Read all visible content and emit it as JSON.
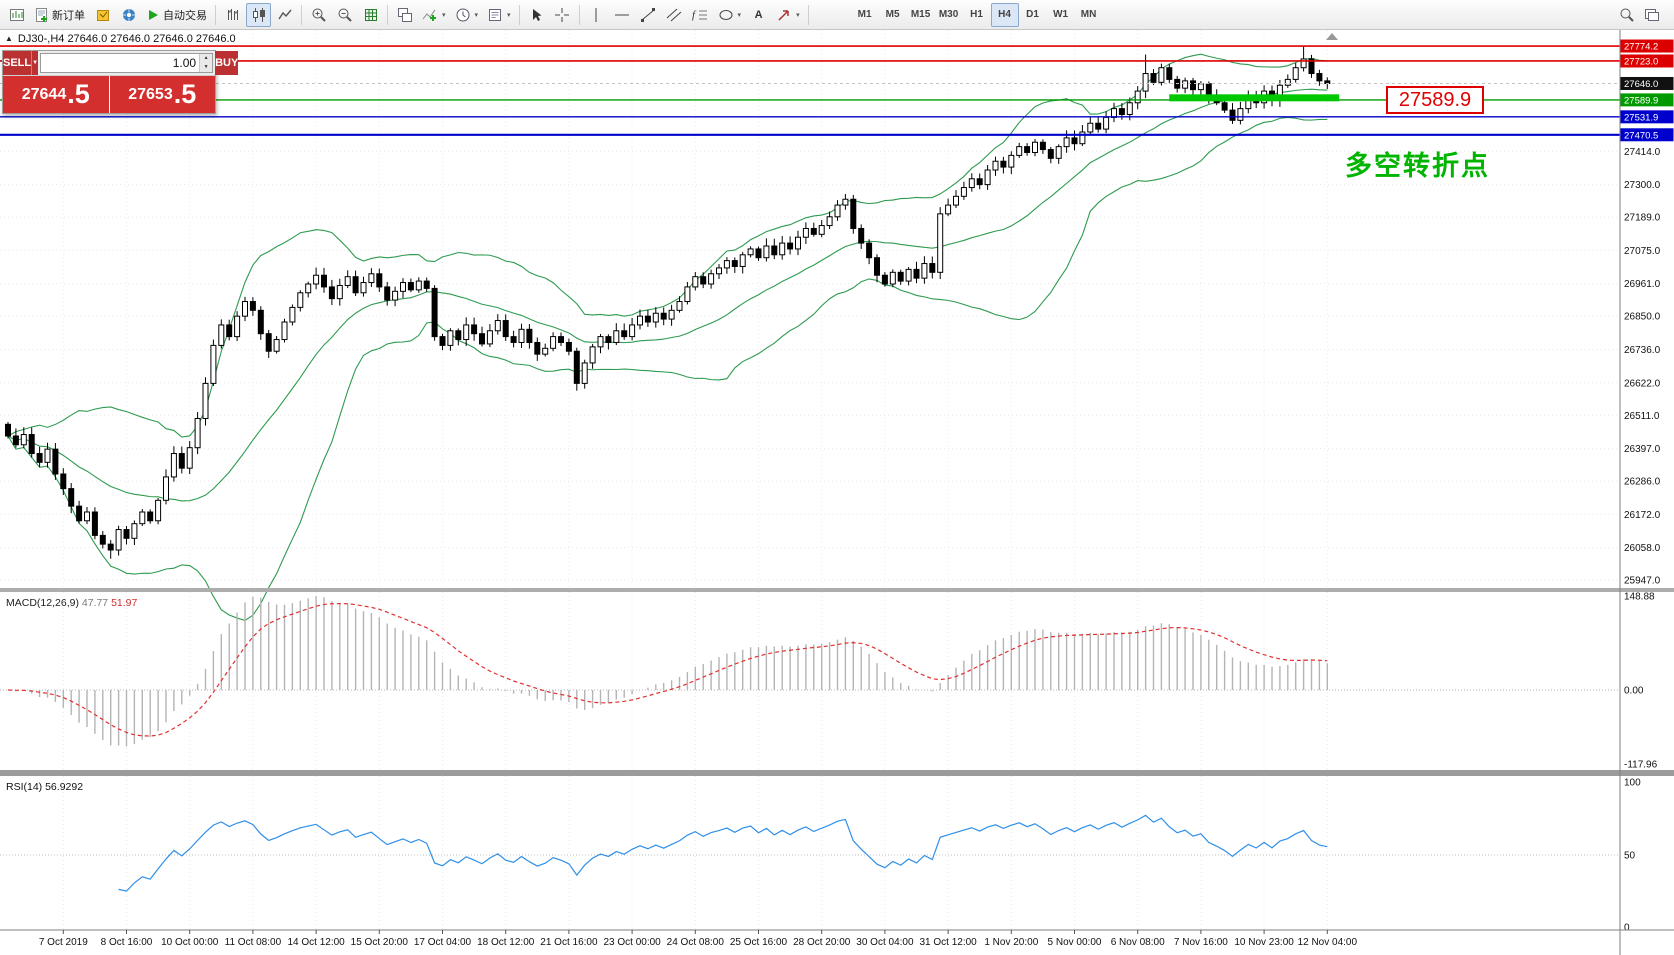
{
  "toolbar": {
    "new_order": "新订单",
    "auto_trading": "自动交易",
    "timeframes": [
      "M1",
      "M5",
      "M15",
      "M30",
      "H1",
      "H4",
      "D1",
      "W1",
      "MN"
    ],
    "active_timeframe": "H4",
    "icons": {
      "fibonacci": "f",
      "text_tool": "A"
    }
  },
  "chart": {
    "symbol_info": "DJ30-,H4  27646.0 27646.0 27646.0 27646.0",
    "trade_panel": {
      "sell_label": "SELL",
      "buy_label": "BUY",
      "volume": "1.00",
      "sell_price_main": "27644",
      "sell_price_frac": ".5",
      "buy_price_main": "27653",
      "buy_price_frac": ".5"
    },
    "annotations": {
      "price_label": "27589.9",
      "turning_point": "多空转折点"
    }
  },
  "chart_data": {
    "type": "candlestick",
    "symbol": "DJ30-",
    "timeframe": "H4",
    "ylim": [
      25920,
      27829
    ],
    "grid": "dotted",
    "first_open": 26480,
    "closes": [
      26440,
      26410,
      26445,
      26380,
      26350,
      26395,
      26310,
      26260,
      26200,
      26150,
      26180,
      26100,
      26070,
      26050,
      26120,
      26090,
      26140,
      26180,
      26150,
      26220,
      26300,
      26380,
      26330,
      26400,
      26500,
      26620,
      26750,
      26820,
      26780,
      26850,
      26900,
      26870,
      26790,
      26730,
      26770,
      26830,
      26880,
      26930,
      26960,
      26990,
      26950,
      26910,
      26955,
      26985,
      26930,
      26965,
      26995,
      26950,
      26905,
      26935,
      26965,
      26940,
      26970,
      26945,
      26780,
      26750,
      26800,
      26770,
      26820,
      26790,
      26755,
      26800,
      26835,
      26780,
      26760,
      26805,
      26760,
      26720,
      26740,
      26780,
      26760,
      26730,
      26620,
      26690,
      26745,
      26780,
      26760,
      26800,
      26780,
      26820,
      26850,
      26830,
      26860,
      26840,
      26870,
      26900,
      26950,
      26985,
      26960,
      26995,
      27015,
      27040,
      27020,
      27060,
      27080,
      27050,
      27090,
      27060,
      27100,
      27080,
      27120,
      27150,
      27130,
      27160,
      27190,
      27230,
      27250,
      27150,
      27100,
      27050,
      26990,
      26960,
      27000,
      26970,
      27010,
      26980,
      27030,
      27000,
      27200,
      27230,
      27260,
      27290,
      27320,
      27300,
      27350,
      27380,
      27360,
      27400,
      27430,
      27410,
      27445,
      27420,
      27390,
      27430,
      27460,
      27440,
      27480,
      27510,
      27490,
      27530,
      27560,
      27540,
      27580,
      27620,
      27680,
      27650,
      27700,
      27660,
      27630,
      27655,
      27625,
      27645,
      27600,
      27580,
      27555,
      27520,
      27560,
      27600,
      27580,
      27620,
      27590,
      27640,
      27660,
      27700,
      27730,
      27680,
      27655,
      27646
    ],
    "wick_overrides": {
      "13": {
        "low": 26020
      },
      "72": {
        "low": 26595
      },
      "106": {
        "high": 27268
      },
      "144": {
        "high": 27745
      },
      "164": {
        "high": 27774
      }
    },
    "x_labels": [
      "7 Oct 2019",
      "8 Oct 16:00",
      "10 Oct 00:00",
      "11 Oct 08:00",
      "14 Oct 12:00",
      "15 Oct 20:00",
      "17 Oct 04:00",
      "18 Oct 12:00",
      "21 Oct 16:00",
      "23 Oct 00:00",
      "24 Oct 08:00",
      "25 Oct 16:00",
      "28 Oct 20:00",
      "30 Oct 04:00",
      "31 Oct 12:00",
      "1 Nov 20:00",
      "5 Nov 00:00",
      "6 Nov 08:00",
      "7 Nov 16:00",
      "10 Nov 23:00",
      "12 Nov 04:00"
    ],
    "first_tick_bar": 7,
    "bars_per_label": 8,
    "price_axis_labels": [
      "27414.0",
      "27300.0",
      "27189.0",
      "27075.0",
      "26961.0",
      "26850.0",
      "26736.0",
      "26622.0",
      "26511.0",
      "26397.0",
      "26286.0",
      "26172.0",
      "26058.0",
      "25947.0"
    ],
    "hlines": [
      {
        "price": 27774.2,
        "label": "27774.2",
        "color": "#dd0000",
        "width": 1.6
      },
      {
        "price": 27723.0,
        "label": "27723.0",
        "color": "#dd0000",
        "width": 1.6
      },
      {
        "price": 27589.9,
        "label": "27589.9",
        "color": "#009a00",
        "width": 1.4
      },
      {
        "price": 27531.9,
        "label": "27531.9",
        "color": "#0000cc",
        "width": 1.4
      },
      {
        "price": 27470.5,
        "label": "27470.5",
        "color": "#0000cc",
        "width": 2.2
      }
    ],
    "current_price": {
      "value": 27646.0,
      "label": "27646.0",
      "tag_color": "#111111"
    },
    "highlight_bar": {
      "price": 27597,
      "bar_start": 147,
      "bar_end": 168.5,
      "color": "#00c800",
      "thickness": 7
    },
    "indicators": {
      "bollinger": {
        "period": 20,
        "deviation": 2,
        "color": "#2e9b4f"
      },
      "macd": {
        "name": "MACD(12,26,9)",
        "value_main": "47.77",
        "value_signal": "51.97",
        "axis_labels": [
          "148.88",
          "0.00",
          "-117.96"
        ],
        "hist_color": "#b4b4b4",
        "signal_color": "#e03030"
      },
      "rsi": {
        "name": "RSI(14)",
        "value": "56.9292",
        "axis_labels": [
          "100",
          "50",
          "0"
        ],
        "color": "#2f8fe8"
      }
    }
  }
}
